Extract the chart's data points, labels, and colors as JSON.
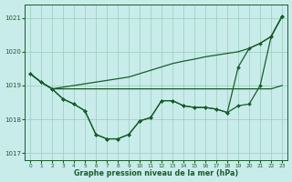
{
  "bg_color": "#c8ecea",
  "grid_color": "#99ccbb",
  "line_color": "#1a5c2a",
  "xlabel": "Graphe pression niveau de la mer (hPa)",
  "ylim": [
    1016.8,
    1021.4
  ],
  "xlim": [
    -0.5,
    23.5
  ],
  "yticks": [
    1017,
    1018,
    1019,
    1020,
    1021
  ],
  "xticks": [
    0,
    1,
    2,
    3,
    4,
    5,
    6,
    7,
    8,
    9,
    10,
    11,
    12,
    13,
    14,
    15,
    16,
    17,
    18,
    19,
    20,
    21,
    22,
    23
  ],
  "line_flat": [
    1019.35,
    1019.1,
    1018.9,
    1018.9,
    1018.9,
    1018.9,
    1018.9,
    1018.9,
    1018.9,
    1018.9,
    1018.9,
    1018.9,
    1018.9,
    1018.9,
    1018.9,
    1018.9,
    1018.9,
    1018.9,
    1018.9,
    1018.9,
    1018.9,
    1018.9,
    1018.9,
    1019.0
  ],
  "line_diag": [
    1019.35,
    1019.1,
    1018.9,
    1018.95,
    1019.0,
    1019.05,
    1019.1,
    1019.15,
    1019.2,
    1019.25,
    1019.35,
    1019.45,
    1019.55,
    1019.65,
    1019.72,
    1019.78,
    1019.85,
    1019.9,
    1019.95,
    1020.0,
    1020.1,
    1020.25,
    1020.45,
    1021.05
  ],
  "line_curve1": [
    1019.35,
    1019.1,
    1018.9,
    1018.6,
    1018.45,
    1018.25,
    1017.55,
    1017.42,
    1017.42,
    1017.55,
    1017.95,
    1018.05,
    1018.55,
    1018.55,
    1018.4,
    1018.35,
    1018.35,
    1018.3,
    1018.2,
    1018.4,
    1018.45,
    1019.0,
    1020.45,
    1021.05
  ],
  "line_curve2": [
    1019.35,
    1019.1,
    1018.9,
    1018.6,
    1018.45,
    1018.25,
    1017.55,
    1017.42,
    1017.42,
    1017.55,
    1017.95,
    1018.05,
    1018.55,
    1018.55,
    1018.4,
    1018.35,
    1018.35,
    1018.3,
    1018.2,
    1019.55,
    1020.1,
    1020.25,
    1020.45,
    1021.05
  ]
}
